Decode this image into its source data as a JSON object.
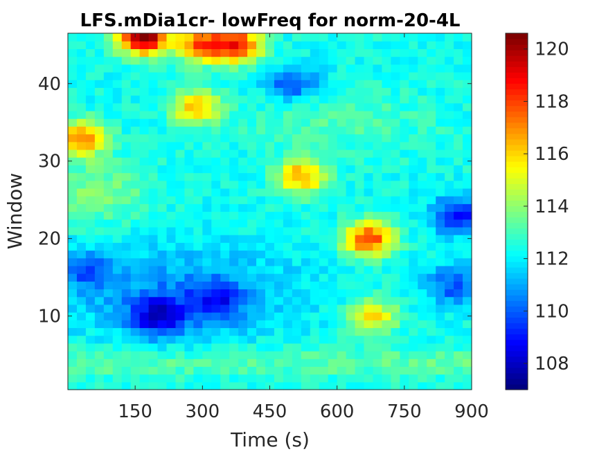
{
  "chart_data": {
    "type": "heatmap",
    "title": "LFS.mDia1cr- lowFreq for norm-20-4L",
    "xlabel": "Time (s)",
    "ylabel": "Window",
    "xlim": [
      0,
      900
    ],
    "ylim": [
      0.5,
      46.5
    ],
    "x_ticks": [
      150,
      300,
      450,
      600,
      750,
      900
    ],
    "y_ticks": [
      10,
      20,
      30,
      40
    ],
    "colorbar": {
      "colormap": "jet",
      "range": [
        107,
        120.6
      ],
      "ticks": [
        108,
        110,
        112,
        114,
        116,
        118,
        120
      ]
    },
    "rows": 46,
    "cols": 45,
    "hotspots": [
      {
        "t": 170,
        "w": 46,
        "value": 120.5
      },
      {
        "t": 300,
        "w": 45,
        "value": 117.5
      },
      {
        "t": 380,
        "w": 45,
        "value": 118
      },
      {
        "t": 30,
        "w": 33,
        "value": 117
      },
      {
        "t": 285,
        "w": 37,
        "value": 116
      },
      {
        "t": 520,
        "w": 28,
        "value": 116.5
      },
      {
        "t": 670,
        "w": 20,
        "value": 118
      },
      {
        "t": 680,
        "w": 10,
        "value": 115.5
      }
    ],
    "coldspots": [
      {
        "t": 200,
        "w": 10,
        "value": 108.5
      },
      {
        "t": 330,
        "w": 12,
        "value": 109.5
      },
      {
        "t": 40,
        "w": 16,
        "value": 110
      },
      {
        "t": 500,
        "w": 40,
        "value": 109.5
      },
      {
        "t": 870,
        "w": 23,
        "value": 108.5
      },
      {
        "t": 860,
        "w": 14,
        "value": 109.5
      }
    ]
  }
}
